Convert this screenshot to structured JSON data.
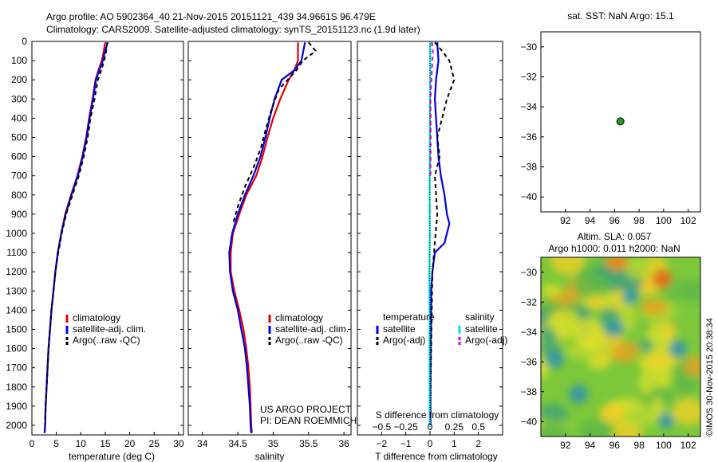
{
  "header": {
    "line1": "Argo profile: AO 5902364_40 21-Nov-2015 20151121_439 34.9661S 96.479E",
    "line2": "Climatology: CARS2009. Satellite-adjusted climatology: synTS_20151123.nc (1.9d later)"
  },
  "credit": {
    "line1": "US ARGO PROJECT",
    "line2": "PI: DEAN ROEMMICH"
  },
  "timestamp": "©IMOS 30-Nov-2015 20:38:34",
  "colors": {
    "climatology": "#e00000",
    "satellite": "#0000e0",
    "argo": "#000000",
    "sat_salinity": "#00e0e0",
    "argo_salinity": "#e000e0",
    "marker": "#2a9a2a"
  },
  "chart_data": [
    {
      "type": "line",
      "id": "temperature",
      "xlabel": "temperature (deg C)",
      "xlim": [
        0,
        31
      ],
      "xticks": [
        0,
        5,
        10,
        15,
        20,
        25,
        30
      ],
      "ylim": [
        2050,
        0
      ],
      "yticks": [
        0,
        100,
        200,
        300,
        400,
        500,
        600,
        700,
        800,
        900,
        1000,
        1100,
        1200,
        1300,
        1400,
        1500,
        1600,
        1700,
        1800,
        1900,
        2000
      ],
      "legend": [
        "climatology",
        "satellite-adj. clim.",
        "Argo(..raw -QC)"
      ],
      "series": [
        {
          "name": "climatology",
          "color": "climatology",
          "dash": false,
          "x": [
            15.0,
            14.7,
            14.3,
            13.6,
            13.0,
            12.4,
            11.7,
            11.1,
            10.3,
            9.3,
            8.0,
            6.8,
            6.0,
            5.3,
            4.8,
            4.4,
            4.0,
            3.7,
            3.4,
            3.2,
            3.0,
            2.8,
            2.7,
            2.6
          ],
          "y": [
            5,
            50,
            100,
            150,
            200,
            300,
            400,
            500,
            600,
            700,
            800,
            900,
            1000,
            1100,
            1200,
            1300,
            1400,
            1500,
            1600,
            1700,
            1800,
            1900,
            2000,
            2040
          ]
        },
        {
          "name": "satellite-adj. clim.",
          "color": "satellite",
          "dash": false,
          "x": [
            15.5,
            15.0,
            14.5,
            13.8,
            13.1,
            12.5,
            11.8,
            11.2,
            10.4,
            9.4,
            8.1,
            6.9,
            6.0,
            5.3,
            4.8,
            4.4,
            4.0,
            3.7,
            3.4,
            3.2,
            3.0,
            2.8,
            2.7,
            2.6
          ],
          "y": [
            5,
            50,
            100,
            150,
            200,
            300,
            400,
            500,
            600,
            700,
            800,
            900,
            1000,
            1100,
            1200,
            1300,
            1400,
            1500,
            1600,
            1700,
            1800,
            1900,
            2000,
            2040
          ]
        },
        {
          "name": "Argo(..raw -QC)",
          "color": "argo",
          "dash": true,
          "x": [
            15.4,
            15.2,
            14.8,
            14.2,
            13.5,
            12.8,
            12.0,
            11.4,
            10.6,
            9.6,
            8.3,
            7.0,
            6.1,
            5.4,
            4.8,
            4.4,
            4.0,
            3.7,
            3.4,
            3.2,
            3.0,
            2.8,
            2.7
          ],
          "y": [
            5,
            50,
            100,
            150,
            200,
            300,
            400,
            500,
            600,
            700,
            800,
            900,
            1000,
            1100,
            1200,
            1300,
            1400,
            1500,
            1600,
            1700,
            1800,
            1900,
            2000
          ]
        }
      ]
    },
    {
      "type": "line",
      "id": "salinity",
      "xlabel": "salinity",
      "xlim": [
        33.8,
        36.1
      ],
      "xticks": [
        34,
        34.5,
        35,
        35.5,
        36
      ],
      "xticklabels": [
        "34",
        "34.5",
        "35",
        "35.5",
        "36"
      ],
      "ylim": [
        2050,
        0
      ],
      "legend": [
        "climatology",
        "satellite-adj. clim.",
        "Argo(..raw -QC)"
      ],
      "series": [
        {
          "name": "climatology",
          "color": "climatology",
          "dash": false,
          "x": [
            35.35,
            35.35,
            35.3,
            35.22,
            35.1,
            35.0,
            34.92,
            34.85,
            34.76,
            34.62,
            34.52,
            34.43,
            34.4,
            34.4,
            34.45,
            34.52,
            34.58,
            34.62,
            34.65,
            34.67,
            34.68,
            34.69,
            34.7
          ],
          "y": [
            5,
            100,
            150,
            200,
            300,
            400,
            500,
            600,
            700,
            800,
            900,
            1000,
            1100,
            1200,
            1300,
            1400,
            1500,
            1600,
            1700,
            1800,
            1900,
            2000,
            2040
          ]
        },
        {
          "name": "satellite-adj. clim.",
          "color": "satellite",
          "dash": false,
          "x": [
            35.45,
            35.4,
            35.3,
            35.12,
            35.02,
            34.95,
            34.89,
            34.82,
            34.72,
            34.6,
            34.5,
            34.42,
            34.38,
            34.39,
            34.43,
            34.5,
            34.55,
            34.6,
            34.63,
            34.65,
            34.67,
            34.68,
            34.69
          ],
          "y": [
            5,
            100,
            150,
            200,
            300,
            400,
            500,
            600,
            700,
            800,
            900,
            1000,
            1100,
            1200,
            1300,
            1400,
            1500,
            1600,
            1700,
            1800,
            1900,
            2000,
            2040
          ]
        },
        {
          "name": "Argo(..raw -QC)",
          "color": "argo",
          "dash": true,
          "x": [
            35.5,
            35.6,
            35.42,
            35.33,
            35.08,
            34.98,
            34.9,
            34.83,
            34.73,
            34.61,
            34.51,
            34.43
          ],
          "y": [
            5,
            50,
            100,
            150,
            250,
            350,
            450,
            550,
            650,
            750,
            850,
            950
          ]
        }
      ]
    },
    {
      "type": "line",
      "id": "difference",
      "xlabel": "T difference from climatology",
      "xlim": [
        -3,
        3
      ],
      "xticks": [
        -2,
        -1,
        0,
        1,
        2
      ],
      "xticklabels": [
        "−2",
        "−1",
        "0",
        "1",
        "2"
      ],
      "top_axis_label": "S difference from climatology",
      "top_axis_ticks": [
        "−0.5",
        "−0.25",
        "0",
        "0.25",
        "0.5"
      ],
      "top_axis_values": [
        -0.5,
        -0.25,
        0,
        0.25,
        0.5
      ],
      "ylim": [
        2050,
        0
      ],
      "legend_titles": [
        "temperature",
        "salinity"
      ],
      "legend": [
        "satellite",
        "Argo(-adj)",
        "satellite",
        "Argo(-adj)"
      ],
      "series": [
        {
          "name": "temperature satellite",
          "color": "satellite",
          "dash": false,
          "x": [
            0.3,
            0.35,
            0.25,
            0.2,
            0.25,
            0.3,
            0.35,
            0.45,
            0.6,
            0.7,
            0.8,
            0.7,
            0.6,
            0.2,
            0.1,
            0.05,
            0.05,
            0.03,
            0.02,
            0.02
          ],
          "y": [
            5,
            100,
            200,
            300,
            400,
            500,
            600,
            700,
            800,
            900,
            950,
            1000,
            1050,
            1100,
            1200,
            1300,
            1400,
            1600,
            1800,
            2000
          ]
        },
        {
          "name": "temperature Argo(-adj)",
          "color": "argo",
          "dash": true,
          "x": [
            0.2,
            0.5,
            0.8,
            1.0,
            0.7,
            0.5,
            0.3,
            0.4,
            0.2,
            0.3,
            0.1,
            0.05,
            0.0
          ],
          "y": [
            5,
            50,
            100,
            200,
            300,
            400,
            500,
            600,
            700,
            900,
            1200,
            1600,
            2000
          ]
        },
        {
          "name": "salinity satellite",
          "color": "sat_salinity",
          "dash": false,
          "x": [
            0.01,
            0.01,
            0.0,
            -0.01,
            -0.02,
            -0.01,
            -0.03,
            -0.02,
            -0.02,
            -0.01
          ],
          "y": [
            5,
            200,
            400,
            600,
            800,
            1000,
            1200,
            1400,
            1700,
            2000
          ]
        },
        {
          "name": "salinity Argo(-adj)",
          "color": "argo_salinity",
          "dash": true,
          "x": [
            0.08,
            0.12,
            0.1,
            0.06,
            0.02,
            0.03,
            0.02
          ],
          "y": [
            5,
            50,
            100,
            200,
            300,
            500,
            700
          ]
        }
      ]
    },
    {
      "type": "scatter",
      "id": "sst_location",
      "title": "sat. SST: NaN Argo: 15.1",
      "xlim": [
        90,
        103
      ],
      "xticks": [
        92,
        94,
        96,
        98,
        100,
        102
      ],
      "ylim": [
        -41,
        -29
      ],
      "yticks": [
        -30,
        -32,
        -34,
        -36,
        -38,
        -40
      ],
      "points": [
        {
          "x": 96.479,
          "y": -34.9661
        }
      ]
    },
    {
      "type": "heatmap",
      "id": "altimetry",
      "title_line1": "Altim. SLA: 0.057",
      "title_line2": "Argo h1000: 0.011 h2000: NaN",
      "xlim": [
        90,
        103
      ],
      "xticks": [
        92,
        94,
        96,
        98,
        100,
        102
      ],
      "ylim": [
        -41,
        -29
      ],
      "yticks": [
        -30,
        -32,
        -34,
        -36,
        -38,
        -40
      ],
      "point": {
        "x": 96.479,
        "y": -34.9661
      }
    }
  ]
}
